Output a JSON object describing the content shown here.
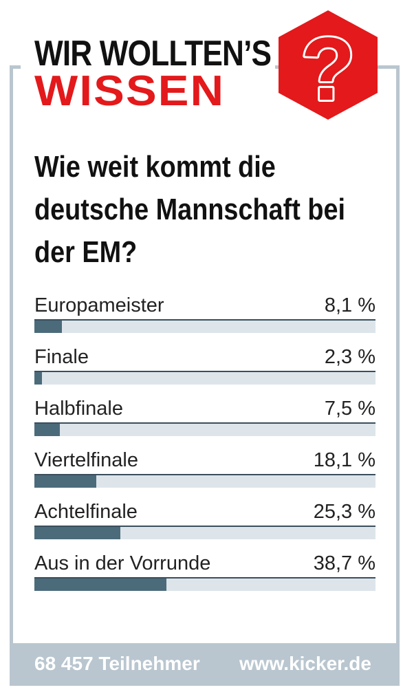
{
  "header": {
    "title_line1": "WIR WOLLTEN’S",
    "title_line2": "WISSEN",
    "badge_symbol": "?"
  },
  "question": [
    "Wie weit kommt die",
    "deutsche Mannschaft bei",
    "der EM?"
  ],
  "footer": {
    "participants": "68 457 Teilnehmer",
    "website": "www.kicker.de"
  },
  "colors": {
    "accent_red": "#e3191b",
    "frame_gray": "#b9c6cf",
    "bar_fill": "#4b6b7b",
    "bar_track": "#dde5ea"
  },
  "chart_data": {
    "type": "bar",
    "orientation": "horizontal",
    "categories": [
      "Europameister",
      "Finale",
      "Halbfinale",
      "Viertelfinale",
      "Achtelfinale",
      "Aus in der Vorrunde"
    ],
    "values": [
      8.1,
      2.3,
      7.5,
      18.1,
      25.3,
      38.7
    ],
    "value_labels": [
      "8,1 %",
      "2,3 %",
      "7,5 %",
      "18,1 %",
      "25,3 %",
      "38,7 %"
    ],
    "xlim": [
      0,
      100
    ],
    "unit": "%",
    "grid": false,
    "legend": "none"
  }
}
